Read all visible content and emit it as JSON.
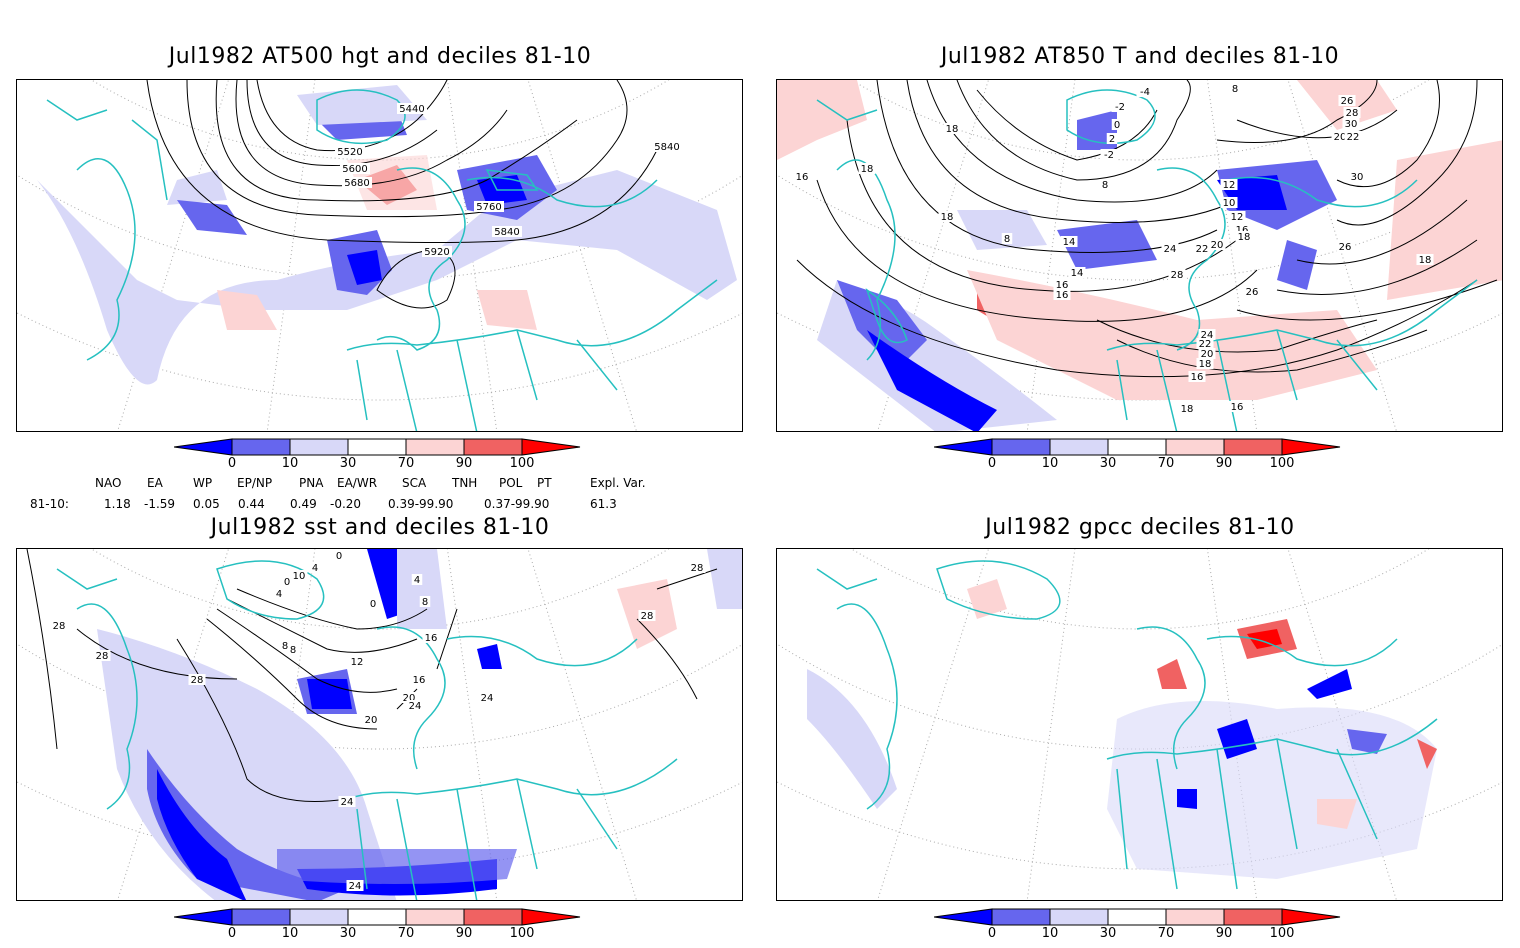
{
  "panels": [
    {
      "title": "Jul1982 AT500 hgt and deciles 81-10",
      "contour_labels": [
        "5440",
        "5520",
        "5600",
        "5680",
        "5760",
        "5840",
        "5840",
        "5920"
      ]
    },
    {
      "title": "Jul1982 AT850 T and deciles 81-10",
      "contour_labels": [
        "-4",
        "-2",
        "0",
        "2",
        "-2",
        "8",
        "26",
        "28",
        "30",
        "20",
        "22",
        "18",
        "18",
        "18",
        "16",
        "8",
        "8",
        "12",
        "10",
        "12",
        "16",
        "18",
        "14",
        "14",
        "16",
        "16",
        "24",
        "22",
        "20",
        "28",
        "30",
        "26",
        "18",
        "26",
        "24",
        "22",
        "20",
        "18",
        "16",
        "18",
        "16"
      ]
    },
    {
      "title": "Jul1982 sst and deciles 81-10",
      "contour_labels": [
        "0",
        "4",
        "10",
        "0",
        "4",
        "0",
        "4",
        "8",
        "8",
        "28",
        "28",
        "28",
        "16",
        "16",
        "12",
        "8",
        "20",
        "20",
        "24",
        "24",
        "24",
        "28",
        "24",
        "28"
      ]
    },
    {
      "title": "Jul1982 gpcc deciles 81-10",
      "contour_labels": []
    }
  ],
  "colorbar": {
    "labels": [
      "0",
      "10",
      "30",
      "70",
      "90",
      "100"
    ],
    "colors": [
      "#0000ff",
      "#6666ee",
      "#d8d8f8",
      "#ffffff",
      "#fcd4d4",
      "#f06262",
      "#ff0000"
    ]
  },
  "indices": {
    "headers": [
      "NAO",
      "EA",
      "WP",
      "EP/NP",
      "PNA",
      "EA/WR",
      "SCA",
      "TNH",
      "POL",
      "PT",
      "Expl. Var."
    ],
    "row_label": "81-10:",
    "values": [
      "1.18",
      "-1.59",
      "0.05",
      "0.44",
      "0.49",
      "-0.20",
      "0.39-99.90",
      "0.37-99.90",
      "61.3"
    ]
  },
  "colors": {
    "coast": "#26c0c0",
    "contour": "#000000",
    "grid": "#aaaaaa"
  }
}
